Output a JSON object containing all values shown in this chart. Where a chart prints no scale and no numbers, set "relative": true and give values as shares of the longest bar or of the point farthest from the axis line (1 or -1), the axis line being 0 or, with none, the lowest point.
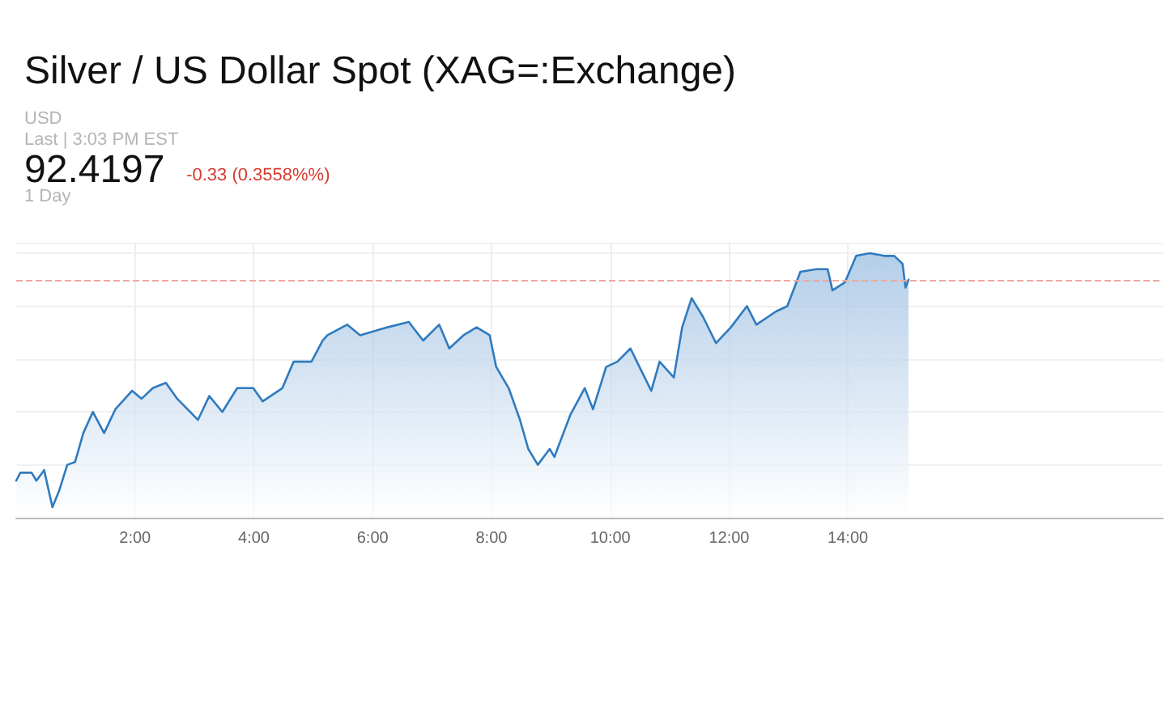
{
  "chart_data": {
    "type": "area",
    "title": "Silver / US Dollar Spot (XAG=:Exchange)",
    "annotations": [
      "USD",
      "Last | 3:03 PM EST",
      "92.4197",
      "-0.33 (0.3558%%)",
      "1 Day"
    ],
    "relative": true,
    "x": [
      0,
      0.07,
      0.26,
      0.34,
      0.47,
      0.61,
      0.72,
      0.86,
      0.99,
      1.13,
      1.29,
      1.48,
      1.67,
      1.95,
      2.11,
      2.3,
      2.52,
      2.71,
      3.06,
      3.25,
      3.47,
      3.72,
      3.99,
      4.15,
      4.48,
      4.67,
      4.97,
      5.16,
      5.24,
      5.57,
      5.79,
      6.25,
      6.61,
      6.85,
      7.12,
      7.29,
      7.53,
      7.75,
      7.97,
      8.08,
      8.29,
      8.48,
      8.62,
      8.78,
      8.98,
      9.06,
      9.33,
      9.57,
      9.71,
      9.93,
      10.12,
      10.34,
      10.47,
      10.69,
      10.83,
      11.07,
      11.21,
      11.37,
      11.56,
      11.78,
      12.03,
      12.3,
      12.46,
      12.79,
      12.98,
      13.2,
      13.47,
      13.66,
      13.74,
      13.95,
      14.14,
      14.37,
      14.61,
      14.78,
      14.92,
      14.97,
      15.02
    ],
    "series": [
      {
        "color": "#2f7bbf",
        "values": [
          0.14,
          0.17,
          0.17,
          0.14,
          0.18,
          0.04,
          0.1,
          0.2,
          0.21,
          0.32,
          0.4,
          0.32,
          0.41,
          0.48,
          0.45,
          0.49,
          0.51,
          0.45,
          0.37,
          0.46,
          0.4,
          0.49,
          0.49,
          0.44,
          0.49,
          0.59,
          0.59,
          0.67,
          0.69,
          0.73,
          0.69,
          0.72,
          0.74,
          0.67,
          0.73,
          0.64,
          0.69,
          0.72,
          0.69,
          0.57,
          0.49,
          0.37,
          0.26,
          0.2,
          0.26,
          0.23,
          0.39,
          0.49,
          0.41,
          0.57,
          0.59,
          0.64,
          0.58,
          0.48,
          0.59,
          0.53,
          0.72,
          0.83,
          0.76,
          0.66,
          0.72,
          0.8,
          0.73,
          0.78,
          0.8,
          0.93,
          0.94,
          0.94,
          0.86,
          0.89,
          0.99,
          1,
          0.99,
          0.99,
          0.96,
          0.87,
          0.9
        ]
      }
    ],
    "xlim": [
      0,
      19.3
    ],
    "xticks": [
      {
        "value": 2,
        "label": "2:00"
      },
      {
        "value": 4,
        "label": "4:00"
      },
      {
        "value": 6,
        "label": "6:00"
      },
      {
        "value": 8,
        "label": "8:00"
      },
      {
        "value": 10,
        "label": "10:00"
      },
      {
        "value": 12,
        "label": "12:00"
      },
      {
        "value": 14,
        "label": "14:00"
      }
    ],
    "ref_lines": [
      {
        "axis": "y",
        "value": 0.9,
        "color": "#f0a8a0",
        "line_style": "dashed"
      }
    ],
    "grid": true,
    "marker": "none",
    "line_style": "solid"
  }
}
